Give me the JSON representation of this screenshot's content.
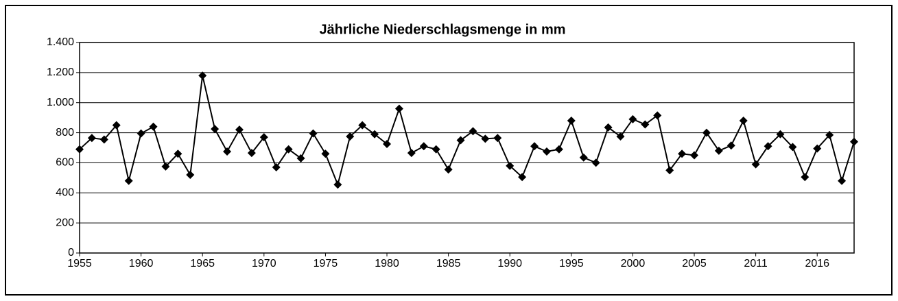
{
  "chart_data": {
    "type": "line",
    "title": "Jährliche Niederschlagsmenge in mm",
    "categories": [
      "1955",
      null,
      null,
      null,
      null,
      "1960",
      null,
      null,
      null,
      null,
      "1965",
      null,
      null,
      null,
      null,
      "1970",
      null,
      null,
      null,
      null,
      "1975",
      null,
      null,
      null,
      null,
      "1980",
      null,
      null,
      null,
      null,
      "1985",
      null,
      null,
      null,
      null,
      "1990",
      null,
      null,
      null,
      null,
      "1995",
      null,
      null,
      null,
      null,
      "2000",
      null,
      null,
      null,
      null,
      "2005",
      null,
      null,
      null,
      null,
      "2011",
      null,
      null,
      null,
      null,
      "2016",
      null,
      null,
      null
    ],
    "series": [
      {
        "color": "#000000",
        "values": [
          690,
          765,
          755,
          850,
          480,
          795,
          840,
          575,
          660,
          520,
          1180,
          825,
          675,
          820,
          665,
          770,
          570,
          690,
          630,
          795,
          660,
          455,
          775,
          850,
          790,
          725,
          960,
          665,
          710,
          690,
          555,
          750,
          810,
          760,
          765,
          580,
          505,
          710,
          675,
          690,
          880,
          635,
          600,
          835,
          775,
          890,
          855,
          915,
          550,
          660,
          650,
          800,
          680,
          715,
          880,
          590,
          710,
          790,
          705,
          505,
          695,
          785,
          480,
          740
        ]
      }
    ],
    "ylim": [
      0,
      1400
    ],
    "yticks": [
      0,
      200,
      400,
      600,
      800,
      {
        "value": 1000,
        "label": "1.000"
      },
      {
        "value": 1200,
        "label": "1.200"
      },
      {
        "value": 1400,
        "label": "1.400"
      }
    ],
    "grid": true
  }
}
